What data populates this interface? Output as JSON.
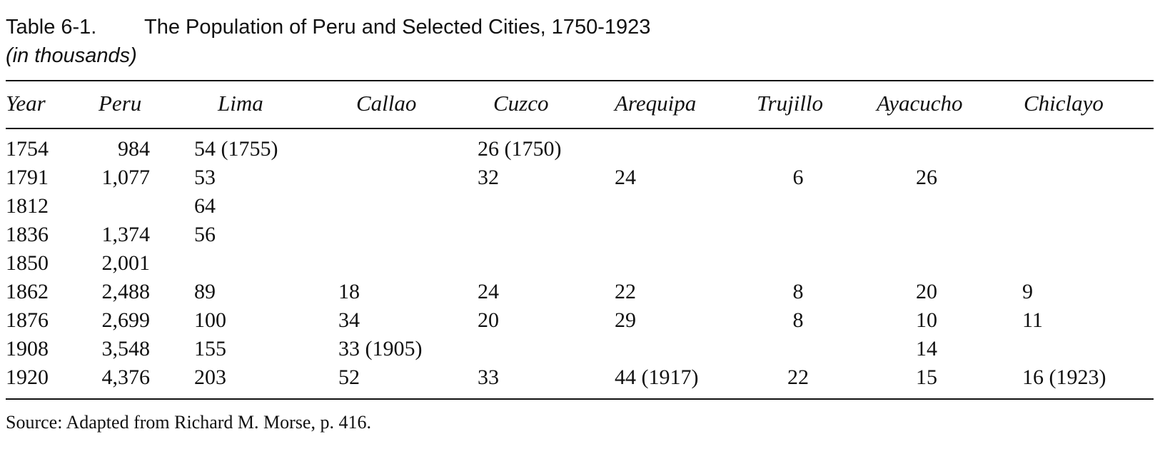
{
  "table": {
    "label": "Table 6-1.",
    "title": "The Population of Peru and Selected Cities, 1750-1923",
    "subtitle": "(in thousands)",
    "headers": [
      "Year",
      "Peru",
      "Lima",
      "Callao",
      "Cuzco",
      "Arequipa",
      "Trujillo",
      "Ayacucho",
      "Chiclayo"
    ],
    "rows": [
      [
        "1754",
        "984",
        "54 (1755)",
        "",
        "26 (1750)",
        "",
        "",
        "",
        ""
      ],
      [
        "1791",
        "1,077",
        "53",
        "",
        "32",
        "24",
        "6",
        "26",
        ""
      ],
      [
        "1812",
        "",
        "64",
        "",
        "",
        "",
        "",
        "",
        ""
      ],
      [
        "1836",
        "1,374",
        "56",
        "",
        "",
        "",
        "",
        "",
        ""
      ],
      [
        "1850",
        "2,001",
        "",
        "",
        "",
        "",
        "",
        "",
        ""
      ],
      [
        "1862",
        "2,488",
        "89",
        "18",
        "24",
        "22",
        "8",
        "20",
        "9"
      ],
      [
        "1876",
        "2,699",
        "100",
        "34",
        "20",
        "29",
        "8",
        "10",
        "11"
      ],
      [
        "1908",
        "3,548",
        "155",
        "33 (1905)",
        "",
        "",
        "",
        "14",
        ""
      ],
      [
        "1920",
        "4,376",
        "203",
        "52",
        "33",
        "44 (1917)",
        "22",
        "15",
        "16 (1923)"
      ]
    ],
    "source": "Source: Adapted from Richard M. Morse, p. 416."
  }
}
